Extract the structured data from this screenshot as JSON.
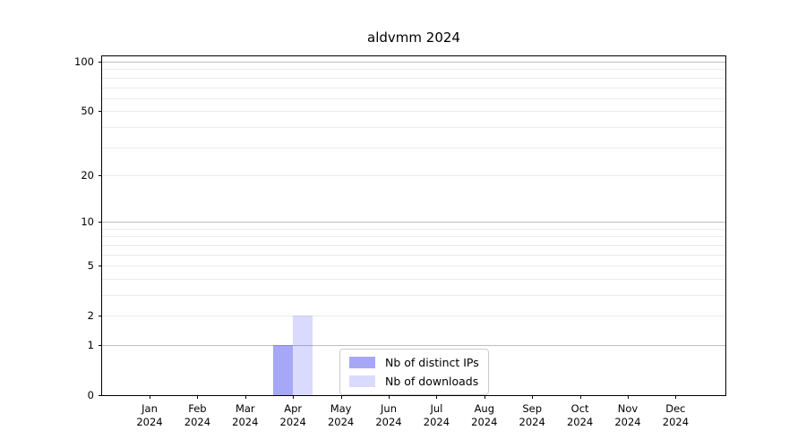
{
  "chart_data": {
    "type": "bar",
    "title": "aldvmm 2024",
    "x": [
      "Jan",
      "Feb",
      "Mar",
      "Apr",
      "May",
      "Jun",
      "Jul",
      "Aug",
      "Sep",
      "Oct",
      "Nov",
      "Dec"
    ],
    "year": "2024",
    "series": [
      {
        "name": "Nb of distinct IPs",
        "color": "rgba(80,80,240,0.5)",
        "values": [
          0,
          0,
          0,
          1,
          0,
          0,
          0,
          0,
          0,
          0,
          0,
          0
        ]
      },
      {
        "name": "Nb of downloads",
        "color": "rgba(80,80,240,0.21)",
        "values": [
          0,
          0,
          0,
          2,
          0,
          0,
          0,
          0,
          0,
          0,
          0,
          0
        ]
      }
    ],
    "y_scale": "log1p",
    "ylim": [
      0,
      110
    ],
    "y_ticks": [
      0,
      1,
      2,
      5,
      10,
      20,
      50,
      100
    ],
    "grid": {
      "decade_values": [
        1,
        10,
        100
      ],
      "decade_color": "#bdbdbd",
      "minor_values": [
        2,
        3,
        4,
        5,
        6,
        7,
        8,
        9,
        20,
        30,
        40,
        50,
        60,
        70,
        80,
        90
      ],
      "minor_color": "#ebebeb"
    },
    "legend_entries": [
      "Nb of distinct IPs",
      "Nb of downloads"
    ]
  }
}
